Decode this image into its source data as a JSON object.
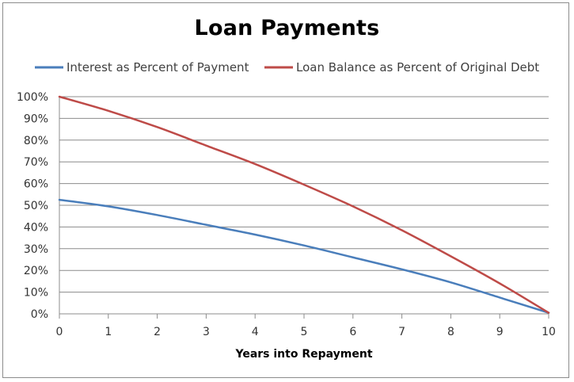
{
  "chart_data": {
    "type": "line",
    "title": "Loan Payments",
    "xlabel": "Years into Repayment",
    "ylabel": "",
    "x": [
      0,
      1,
      2,
      3,
      4,
      5,
      6,
      7,
      8,
      9,
      10
    ],
    "xlim": [
      0,
      10
    ],
    "ylim": [
      0,
      100
    ],
    "y_ticks": [
      "0%",
      "10%",
      "20%",
      "30%",
      "40%",
      "50%",
      "60%",
      "70%",
      "80%",
      "90%",
      "100%"
    ],
    "x_ticks": [
      "0",
      "1",
      "2",
      "3",
      "4",
      "5",
      "6",
      "7",
      "8",
      "9",
      "10"
    ],
    "grid": true,
    "legend": "top",
    "series": [
      {
        "name": "Interest as Percent of Payment",
        "color": "#4a7ebb",
        "values": [
          52.5,
          49.5,
          45.5,
          41,
          36.5,
          31.5,
          26,
          20.5,
          14.5,
          7.5,
          0.5
        ]
      },
      {
        "name": "Loan Balance as Percent of Original Debt",
        "color": "#be4b48",
        "values": [
          100,
          93.5,
          86,
          77.5,
          69,
          59.5,
          49.5,
          38.5,
          26.5,
          14,
          0.5
        ]
      }
    ]
  }
}
